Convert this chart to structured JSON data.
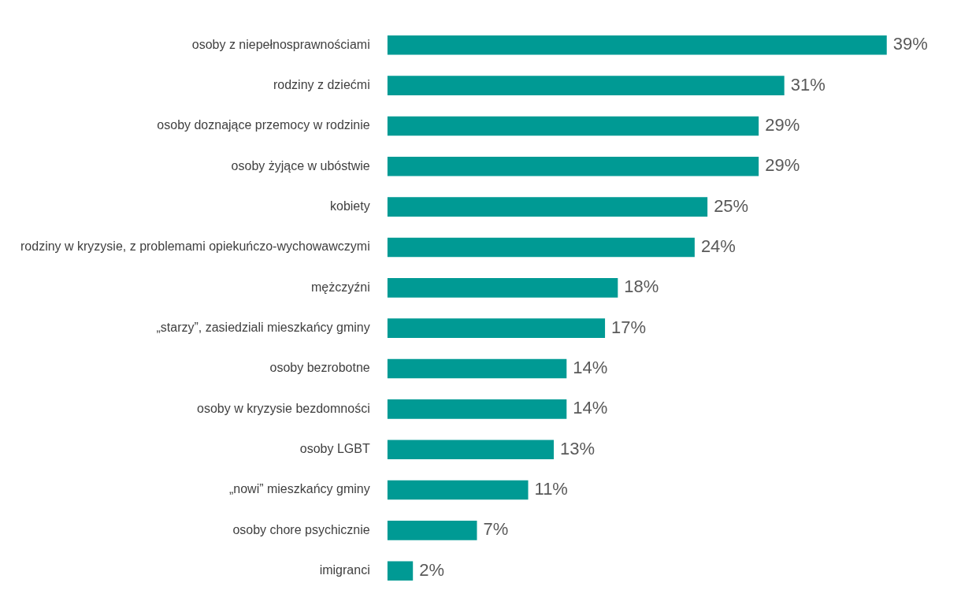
{
  "chart_data": {
    "type": "bar",
    "orientation": "horizontal",
    "categories": [
      "osoby z niepełnosprawnościami",
      "rodziny z dziećmi",
      "osoby doznające przemocy w rodzinie",
      "osoby żyjące w ubóstwie",
      "kobiety",
      "rodziny w kryzysie, z problemami opiekuńczo-wychowawczymi",
      "mężczyźni",
      "„starzy”, zasiedziali mieszkańcy gminy",
      "osoby bezrobotne",
      "osoby w kryzysie bezdomności",
      "osoby LGBT",
      "„nowi” mieszkańcy gminy",
      "osoby chore psychicznie",
      "imigranci"
    ],
    "values": [
      39,
      31,
      29,
      29,
      25,
      24,
      18,
      17,
      14,
      14,
      13,
      11,
      7,
      2
    ],
    "value_labels": [
      "39%",
      "31%",
      "29%",
      "29%",
      "25%",
      "24%",
      "18%",
      "17%",
      "14%",
      "14%",
      "13%",
      "11%",
      "7%",
      "2%"
    ],
    "color": "#009a94",
    "tick_labels": "y"
  }
}
